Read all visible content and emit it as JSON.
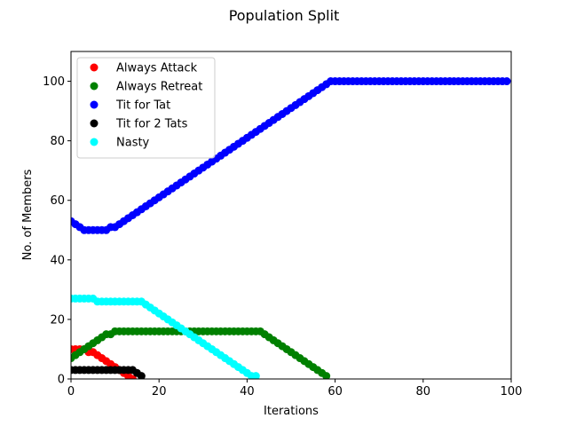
{
  "chart_data": {
    "type": "scatter",
    "title": "Population Split",
    "xlabel": "Iterations",
    "ylabel": "No. of Members",
    "xlim": [
      0,
      100
    ],
    "ylim": [
      0,
      110
    ],
    "xticks": [
      0,
      20,
      40,
      60,
      80,
      100
    ],
    "yticks": [
      0,
      20,
      40,
      60,
      80,
      100
    ],
    "grid": false,
    "legend_position": "top-left",
    "series": [
      {
        "name": "Always Attack",
        "color": "#ff0000",
        "x": [
          0,
          1,
          2,
          3,
          4,
          5,
          6,
          7,
          8,
          9,
          10,
          11,
          12,
          13,
          14
        ],
        "y": [
          10,
          10,
          10,
          10,
          9,
          9,
          8,
          7,
          6,
          5,
          4,
          3,
          2,
          1,
          0
        ]
      },
      {
        "name": "Always Retreat",
        "color": "#008000",
        "x": [
          0,
          1,
          2,
          3,
          4,
          5,
          6,
          7,
          8,
          9,
          10,
          11,
          12,
          13,
          14,
          15,
          16,
          17,
          18,
          19,
          20,
          21,
          22,
          23,
          24,
          25,
          26,
          27,
          28,
          29,
          30,
          31,
          32,
          33,
          34,
          35,
          36,
          37,
          38,
          39,
          40,
          41,
          42,
          43,
          44,
          45,
          46,
          47,
          48,
          49,
          50,
          51,
          52,
          53,
          54,
          55,
          56,
          57,
          58
        ],
        "y": [
          7,
          8,
          9,
          10,
          11,
          12,
          13,
          14,
          15,
          15,
          16,
          16,
          16,
          16,
          16,
          16,
          16,
          16,
          16,
          16,
          16,
          16,
          16,
          16,
          16,
          16,
          16,
          16,
          16,
          16,
          16,
          16,
          16,
          16,
          16,
          16,
          16,
          16,
          16,
          16,
          16,
          16,
          16,
          16,
          15,
          14,
          13,
          12,
          11,
          10,
          9,
          8,
          7,
          6,
          5,
          4,
          3,
          2,
          1
        ]
      },
      {
        "name": "Tit for Tat",
        "color": "#0000ff",
        "x": [
          0,
          1,
          2,
          3,
          4,
          5,
          6,
          7,
          8,
          9,
          10,
          11,
          12,
          13,
          14,
          15,
          16,
          17,
          18,
          19,
          20,
          21,
          22,
          23,
          24,
          25,
          26,
          27,
          28,
          29,
          30,
          31,
          32,
          33,
          34,
          35,
          36,
          37,
          38,
          39,
          40,
          41,
          42,
          43,
          44,
          45,
          46,
          47,
          48,
          49,
          50,
          51,
          52,
          53,
          54,
          55,
          56,
          57,
          58,
          59,
          60,
          61,
          62,
          63,
          64,
          65,
          66,
          67,
          68,
          69,
          70,
          71,
          72,
          73,
          74,
          75,
          76,
          77,
          78,
          79,
          80,
          81,
          82,
          83,
          84,
          85,
          86,
          87,
          88,
          89,
          90,
          91,
          92,
          93,
          94,
          95,
          96,
          97,
          98,
          99
        ],
        "y": [
          53,
          52,
          51,
          50,
          50,
          50,
          50,
          50,
          50,
          51,
          51,
          52,
          53,
          54,
          55,
          56,
          57,
          58,
          59,
          60,
          61,
          62,
          63,
          64,
          65,
          66,
          67,
          68,
          69,
          70,
          71,
          72,
          73,
          74,
          75,
          76,
          77,
          78,
          79,
          80,
          81,
          82,
          83,
          84,
          85,
          86,
          87,
          88,
          89,
          90,
          91,
          92,
          93,
          94,
          95,
          96,
          97,
          98,
          99,
          100,
          100,
          100,
          100,
          100,
          100,
          100,
          100,
          100,
          100,
          100,
          100,
          100,
          100,
          100,
          100,
          100,
          100,
          100,
          100,
          100,
          100,
          100,
          100,
          100,
          100,
          100,
          100,
          100,
          100,
          100,
          100,
          100,
          100,
          100,
          100,
          100,
          100,
          100,
          100,
          100
        ]
      },
      {
        "name": "Tit for 2 Tats",
        "color": "#000000",
        "x": [
          0,
          1,
          2,
          3,
          4,
          5,
          6,
          7,
          8,
          9,
          10,
          11,
          12,
          13,
          14,
          15,
          16
        ],
        "y": [
          3,
          3,
          3,
          3,
          3,
          3,
          3,
          3,
          3,
          3,
          3,
          3,
          3,
          3,
          3,
          2,
          1
        ]
      },
      {
        "name": "Nasty",
        "color": "#00ffff",
        "x": [
          0,
          1,
          2,
          3,
          4,
          5,
          6,
          7,
          8,
          9,
          10,
          11,
          12,
          13,
          14,
          15,
          16,
          17,
          18,
          19,
          20,
          21,
          22,
          23,
          24,
          25,
          26,
          27,
          28,
          29,
          30,
          31,
          32,
          33,
          34,
          35,
          36,
          37,
          38,
          39,
          40,
          41,
          42
        ],
        "y": [
          27,
          27,
          27,
          27,
          27,
          27,
          26,
          26,
          26,
          26,
          26,
          26,
          26,
          26,
          26,
          26,
          26,
          25,
          24,
          23,
          22,
          21,
          20,
          19,
          18,
          17,
          16,
          15,
          14,
          13,
          12,
          11,
          10,
          9,
          8,
          7,
          6,
          5,
          4,
          3,
          2,
          1,
          1
        ]
      }
    ]
  }
}
